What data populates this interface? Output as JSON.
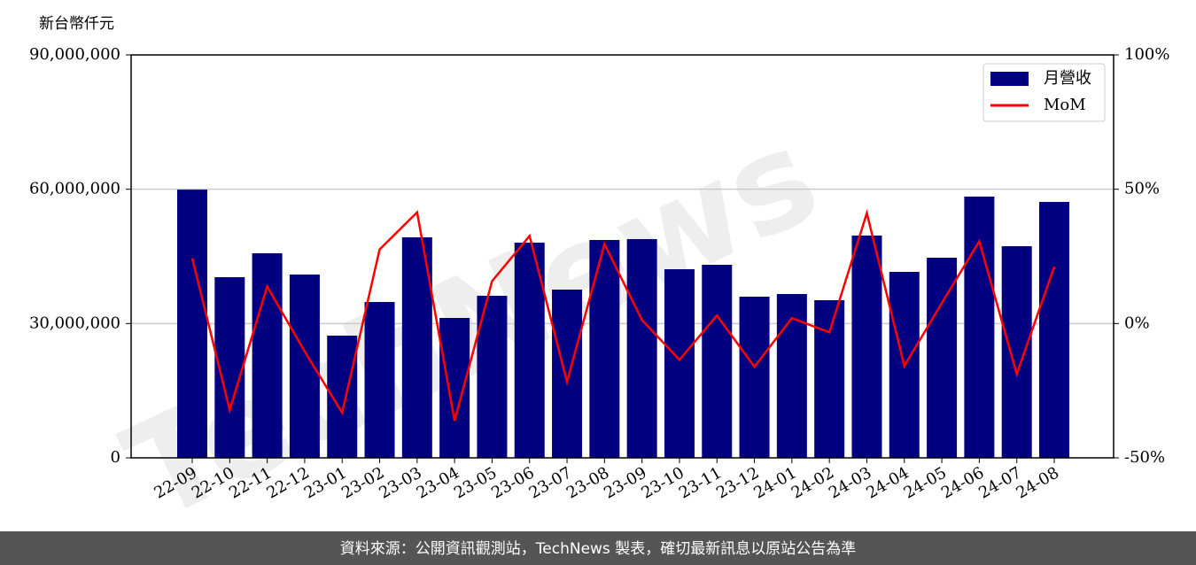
{
  "chart_data": {
    "type": "bar-line",
    "y_label": "新台幣仟元",
    "watermark": "TechNews",
    "footer": "資料來源：公開資訊觀測站，TechNews 製表，確切最新訊息以原站公告為準",
    "categories": [
      "22-09",
      "22-10",
      "22-11",
      "22-12",
      "23-01",
      "23-02",
      "23-03",
      "23-04",
      "23-05",
      "23-06",
      "23-07",
      "23-08",
      "23-09",
      "23-10",
      "23-11",
      "23-12",
      "24-01",
      "24-02",
      "24-03",
      "24-04",
      "24-05",
      "24-06",
      "24-07",
      "24-08"
    ],
    "series": [
      {
        "name": "月營收",
        "type": "bar",
        "color": "#000080",
        "values": [
          59900000,
          40350000,
          45690000,
          40940000,
          27300000,
          34810000,
          49250000,
          31250000,
          36200000,
          48060000,
          37580000,
          48660000,
          48860000,
          42130000,
          43120000,
          36000000,
          36590000,
          35210000,
          49650000,
          41540000,
          44700000,
          58350000,
          47270000,
          57160000
        ]
      },
      {
        "name": "MoM",
        "type": "line",
        "color": "#ff0000",
        "axis": "y2",
        "values": [
          24.3,
          -32.2,
          13.8,
          -10.4,
          -33.2,
          27.6,
          41.4,
          -36.2,
          15.8,
          32.6,
          -21.7,
          29.6,
          1.3,
          -13.5,
          3.0,
          -16.1,
          2.0,
          -3.3,
          41.1,
          -15.8,
          7.6,
          30.6,
          -18.8,
          21.1
        ]
      }
    ],
    "ylim": [
      0,
      90000000
    ],
    "yticks": [
      0,
      {
        "value": 30000000,
        "label": "30,000,000"
      },
      {
        "value": 60000000,
        "label": "60,000,000"
      },
      {
        "value": 90000000,
        "label": "90,000,000"
      }
    ],
    "y2lim": [
      -50,
      100
    ],
    "y2ticks": [
      {
        "value": -50,
        "label": "-50%"
      },
      {
        "value": 0,
        "label": "0%"
      },
      {
        "value": 50,
        "label": "50%"
      },
      {
        "value": 100,
        "label": "100%"
      }
    ],
    "grid": true,
    "legend": "upper right"
  }
}
